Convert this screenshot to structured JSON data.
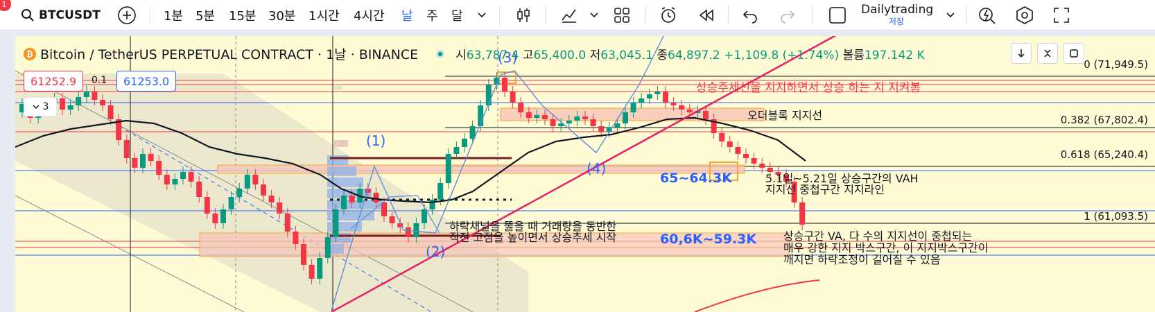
{
  "toolbar": {
    "notification_count": "1",
    "symbol": "BTCUSDT",
    "intervals": [
      "1분",
      "5분",
      "15분",
      "30분",
      "1시간",
      "4시간",
      "날",
      "주",
      "달"
    ],
    "active_interval_index": 6,
    "layout_name": "Dailytrading",
    "layout_status": "저장"
  },
  "legend": {
    "coin_glyph": "₿",
    "title": "Bitcoin / TetherUS PERPETUAL CONTRACT · 1날 · BINANCE",
    "open_label": "시",
    "open": "63,787.4",
    "high_label": "고",
    "high": "65,400.0",
    "low_label": "저",
    "low": "63,045.1",
    "close_label": "종",
    "close": "64,897.2",
    "change": "+1,109.8 (+1.74%)",
    "volume_label": "볼륨",
    "volume": "197.142 K"
  },
  "trade": {
    "sell_price": "61252.9",
    "spread": "0.1",
    "buy_price": "61253.0",
    "collapse_label": "3"
  },
  "fib_levels": [
    "0 (71,949.5)",
    "0.382 (67,802.4)",
    "0.618 (65,240.4)",
    "1 (61,093.5)"
  ],
  "annotations": {
    "trend_support": "상승주세선을 지지하면서 상승 하는 지 지켜봄",
    "orderblock": "오더블록 지지선",
    "wave1": "(1)",
    "wave2": "(2)",
    "wave3": "(3)",
    "wave4": "(4)",
    "zone_upper": "65~64.3K",
    "zone_lower": "60,6K~59.3K",
    "vah_line1": "5.1일~5.21일 상승구간의 VAH",
    "vah_line2": "지지선 중첩구간 지지라인",
    "breakout_line1": "하락채널을 뚫을 때 거래량을 동반한",
    "breakout_line2": "직전 고점을 높이면서 상승추세 시작",
    "box_line1": "상승구간 VA, 다 수의 지지선이 중첩되는",
    "box_line2": "매우 강한 지지 박스구간, 이 지지박스구간이",
    "box_line3": "깨지면 하락조정이 길어질 수 있음"
  },
  "colors": {
    "up": "#089981",
    "down": "#f23645",
    "accent": "#2962ff",
    "chart_bg": "#fffbd5",
    "zone": "#f7c6b6",
    "zone_border": "#f7a23b",
    "trendline": "#e91e63",
    "ma": "#131722"
  },
  "icons": [
    "search-icon",
    "plus-circle-icon",
    "chevron-down-icon",
    "candles-icon",
    "indicators-icon",
    "layouts-icon",
    "alert-clock-icon",
    "replay-icon",
    "undo-icon",
    "redo-icon",
    "checkbox-icon",
    "lightning-icon",
    "settings-hex-icon",
    "fullscreen-icon"
  ]
}
